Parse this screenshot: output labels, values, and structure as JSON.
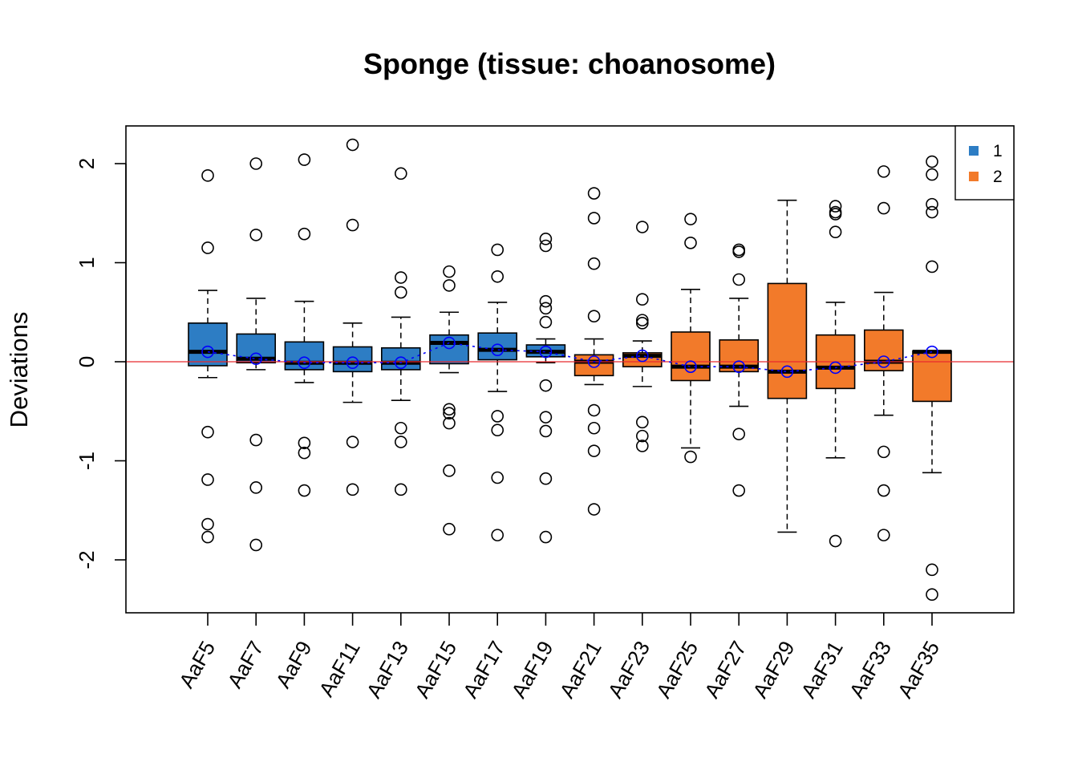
{
  "chart_data": {
    "type": "boxplot",
    "title": "Sponge (tissue: choanosome)",
    "xlabel": "",
    "ylabel": "Deviations",
    "ylim": [
      -2.55,
      2.38
    ],
    "yticks": [
      -2,
      -1,
      0,
      1,
      2
    ],
    "ytick_labels": [
      "-2",
      "-1",
      "0",
      "1",
      "2"
    ],
    "reference_line": {
      "y": 0,
      "color": "#e8292f"
    },
    "mean_line_color": "#0000ff",
    "grid": false,
    "legend": {
      "position": "top-right",
      "entries": [
        {
          "label": "1",
          "color": "#2d7dc4"
        },
        {
          "label": "2",
          "color": "#f27a2a"
        }
      ]
    },
    "categories": [
      "AaF5",
      "AaF7",
      "AaF9",
      "AaF11",
      "AaF13",
      "AaF15",
      "AaF17",
      "AaF19",
      "AaF21",
      "AaF23",
      "AaF25",
      "AaF27",
      "AaF29",
      "AaF31",
      "AaF33",
      "AaF35"
    ],
    "boxes": [
      {
        "label": "AaF5",
        "group": "1",
        "whisker_low": -0.16,
        "q1": -0.04,
        "median": 0.1,
        "q3": 0.39,
        "whisker_high": 0.72,
        "mean": 0.1,
        "outliers": [
          1.88,
          1.15,
          -0.71,
          -1.19,
          -1.64,
          -1.77
        ]
      },
      {
        "label": "AaF7",
        "group": "1",
        "whisker_low": -0.08,
        "q1": -0.01,
        "median": 0.03,
        "q3": 0.28,
        "whisker_high": 0.64,
        "mean": 0.03,
        "outliers": [
          2.0,
          1.28,
          -0.79,
          -1.27,
          -1.85
        ]
      },
      {
        "label": "AaF9",
        "group": "1",
        "whisker_low": -0.21,
        "q1": -0.08,
        "median": -0.01,
        "q3": 0.2,
        "whisker_high": 0.61,
        "mean": -0.01,
        "outliers": [
          2.04,
          1.29,
          -0.82,
          -0.92,
          -1.3
        ]
      },
      {
        "label": "AaF11",
        "group": "1",
        "whisker_low": -0.41,
        "q1": -0.1,
        "median": -0.01,
        "q3": 0.15,
        "whisker_high": 0.39,
        "mean": -0.01,
        "outliers": [
          2.19,
          1.38,
          -0.81,
          -1.29
        ]
      },
      {
        "label": "AaF13",
        "group": "1",
        "whisker_low": -0.39,
        "q1": -0.08,
        "median": -0.01,
        "q3": 0.14,
        "whisker_high": 0.45,
        "mean": -0.01,
        "outliers": [
          1.9,
          0.85,
          0.7,
          -0.67,
          -0.81,
          -1.29
        ]
      },
      {
        "label": "AaF15",
        "group": "1",
        "whisker_low": -0.11,
        "q1": -0.02,
        "median": 0.19,
        "q3": 0.27,
        "whisker_high": 0.5,
        "mean": 0.19,
        "outliers": [
          0.91,
          0.77,
          -0.48,
          -0.52,
          -0.62,
          -1.1,
          -1.69
        ]
      },
      {
        "label": "AaF17",
        "group": "1",
        "whisker_low": -0.3,
        "q1": 0.02,
        "median": 0.12,
        "q3": 0.29,
        "whisker_high": 0.6,
        "mean": 0.12,
        "outliers": [
          1.13,
          0.86,
          -0.55,
          -0.69,
          -1.17,
          -1.75
        ]
      },
      {
        "label": "AaF19",
        "group": "1",
        "whisker_low": -0.01,
        "q1": 0.05,
        "median": 0.1,
        "q3": 0.17,
        "whisker_high": 0.23,
        "mean": 0.1,
        "outliers": [
          1.24,
          1.17,
          0.61,
          0.54,
          0.4,
          -0.24,
          -0.56,
          -0.7,
          -1.18,
          -1.77
        ]
      },
      {
        "label": "AaF21",
        "group": "2",
        "whisker_low": -0.23,
        "q1": -0.14,
        "median": 0.0,
        "q3": 0.07,
        "whisker_high": 0.23,
        "mean": 0.0,
        "outliers": [
          1.7,
          1.45,
          0.99,
          0.46,
          -0.49,
          -0.67,
          -0.9,
          -1.49
        ]
      },
      {
        "label": "AaF23",
        "group": "2",
        "whisker_low": -0.25,
        "q1": -0.05,
        "median": 0.06,
        "q3": 0.09,
        "whisker_high": 0.21,
        "mean": 0.06,
        "outliers": [
          1.36,
          0.63,
          0.42,
          0.39,
          -0.61,
          -0.75,
          -0.85
        ]
      },
      {
        "label": "AaF25",
        "group": "2",
        "whisker_low": -0.87,
        "q1": -0.19,
        "median": -0.05,
        "q3": 0.3,
        "whisker_high": 0.73,
        "mean": -0.05,
        "outliers": [
          1.44,
          1.2,
          -0.96
        ]
      },
      {
        "label": "AaF27",
        "group": "2",
        "whisker_low": -0.45,
        "q1": -0.1,
        "median": -0.05,
        "q3": 0.22,
        "whisker_high": 0.64,
        "mean": -0.05,
        "outliers": [
          1.13,
          1.11,
          0.83,
          -0.73,
          -1.3
        ]
      },
      {
        "label": "AaF29",
        "group": "2",
        "whisker_low": -1.72,
        "q1": -0.37,
        "median": -0.1,
        "q3": 0.79,
        "whisker_high": 1.63,
        "mean": -0.1,
        "outliers": []
      },
      {
        "label": "AaF31",
        "group": "2",
        "whisker_low": -0.97,
        "q1": -0.27,
        "median": -0.06,
        "q3": 0.27,
        "whisker_high": 0.6,
        "mean": -0.06,
        "outliers": [
          1.57,
          1.51,
          1.49,
          1.31,
          -1.81
        ]
      },
      {
        "label": "AaF33",
        "group": "2",
        "whisker_low": -0.54,
        "q1": -0.09,
        "median": 0.0,
        "q3": 0.32,
        "whisker_high": 0.7,
        "mean": 0.0,
        "outliers": [
          1.92,
          1.55,
          -0.91,
          -1.3,
          -1.75
        ]
      },
      {
        "label": "AaF35",
        "group": "2",
        "whisker_low": -1.12,
        "q1": -0.4,
        "median": 0.1,
        "q3": 0.11,
        "whisker_high": 0.11,
        "mean": 0.1,
        "outliers": [
          2.02,
          1.89,
          1.59,
          1.51,
          0.96,
          -2.1,
          -2.35
        ]
      }
    ]
  }
}
